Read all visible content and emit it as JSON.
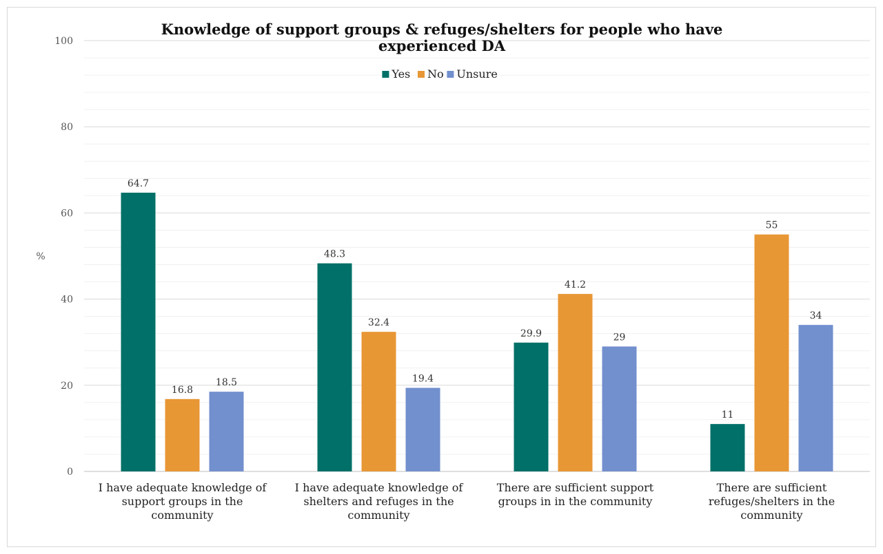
{
  "chart_data": {
    "type": "bar",
    "title": "Knowledge of support groups & refuges/shelters for people who have experienced DA",
    "title_lines": [
      "Knowledge of support groups & refuges/shelters for people who have",
      "experienced DA"
    ],
    "xlabel": "",
    "ylabel": "%",
    "ylim": [
      0,
      100
    ],
    "y_ticks": [
      0,
      20,
      40,
      60,
      80,
      100
    ],
    "grid": true,
    "legend_position": "top-center",
    "categories": [
      "I have adequate knowledge of support groups in the community",
      "I have adequate knowledge of shelters and refuges in the community",
      "There are sufficient support groups in in the community",
      "There are sufficient refuges/shelters in the community"
    ],
    "category_lines": [
      [
        "I have adequate knowledge of",
        "support groups in the",
        "community"
      ],
      [
        "I have adequate knowledge of",
        "shelters and refuges in the",
        "community"
      ],
      [
        "There are sufficient support",
        "groups in in the community"
      ],
      [
        "There are sufficient",
        "refuges/shelters in the",
        "community"
      ]
    ],
    "series": [
      {
        "name": "Yes",
        "color": "#007068",
        "values": [
          64.7,
          48.3,
          29.9,
          11
        ],
        "labels": [
          "64.7",
          "48.3",
          "29.9",
          "11"
        ]
      },
      {
        "name": "No",
        "color": "#E89735",
        "values": [
          16.8,
          32.4,
          41.2,
          55
        ],
        "labels": [
          "16.8",
          "32.4",
          "41.2",
          "55"
        ]
      },
      {
        "name": "Unsure",
        "color": "#728FCE",
        "values": [
          18.5,
          19.4,
          29,
          34
        ],
        "labels": [
          "18.5",
          "19.4",
          "29",
          "34"
        ]
      }
    ]
  }
}
